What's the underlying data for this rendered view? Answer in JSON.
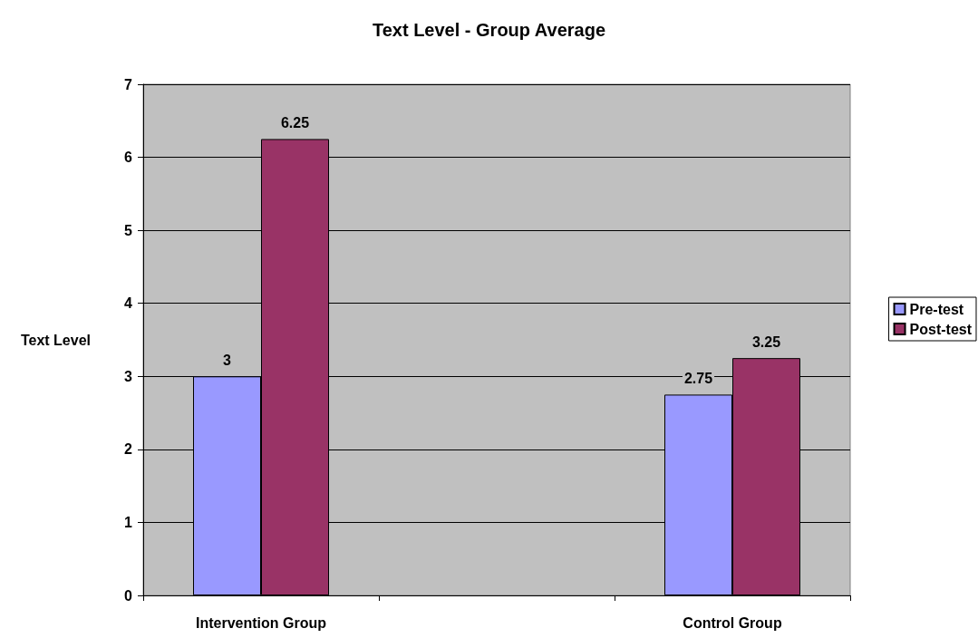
{
  "chart_data": {
    "type": "bar",
    "title": "Text Level - Group Average",
    "ylabel": "Text Level",
    "categories": [
      "Intervention Group",
      null,
      "Control Group"
    ],
    "series": [
      {
        "name": "Pre-test",
        "color": "#9999ff",
        "values": [
          3,
          null,
          2.75
        ]
      },
      {
        "name": "Post-test",
        "color": "#993366",
        "values": [
          6.25,
          null,
          3.25
        ]
      }
    ],
    "ylim": [
      0,
      7
    ],
    "yticks": [
      0,
      1,
      2,
      3,
      4,
      5,
      6,
      7
    ],
    "grid": "y",
    "legend": "right",
    "data_labels": true
  }
}
